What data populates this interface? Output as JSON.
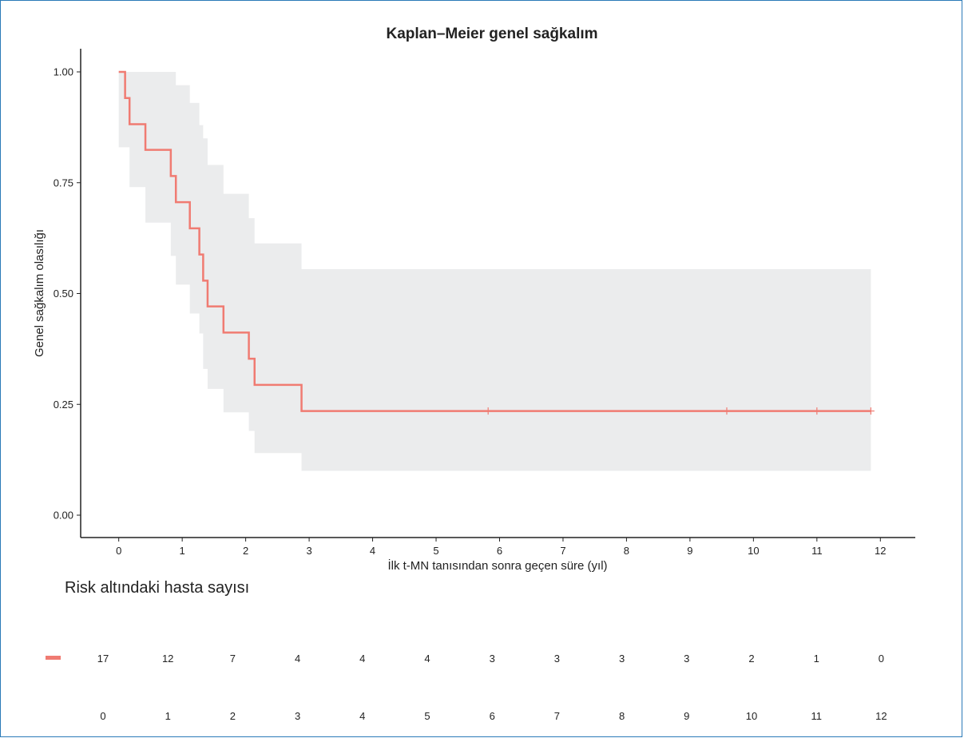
{
  "chart_data": {
    "type": "line",
    "title": "Kaplan–Meier genel sağkalım",
    "xlabel": "İlk t-MN tanısından sonra geçen süre (yıl)",
    "ylabel": "Genel sağkalım olasılığı",
    "xlim": [
      -0.6,
      12.55
    ],
    "ylim": [
      0,
      1
    ],
    "x_ticks": [
      0,
      1,
      2,
      3,
      4,
      5,
      6,
      7,
      8,
      9,
      10,
      11,
      12
    ],
    "y_ticks": [
      "0.00",
      "0.25",
      "0.50",
      "0.75",
      "1.00"
    ],
    "y_tick_values": [
      0,
      0.25,
      0.5,
      0.75,
      1
    ],
    "grid": false,
    "color": "#f07b72",
    "ci_color": "#ebeced",
    "series": [
      {
        "type": "step",
        "points": [
          [
            0,
            1.0
          ],
          [
            0.1,
            0.941
          ],
          [
            0.17,
            0.882
          ],
          [
            0.42,
            0.824
          ],
          [
            0.82,
            0.765
          ],
          [
            0.9,
            0.706
          ],
          [
            1.12,
            0.647
          ],
          [
            1.27,
            0.588
          ],
          [
            1.33,
            0.529
          ],
          [
            1.4,
            0.471
          ],
          [
            1.65,
            0.412
          ],
          [
            2.05,
            0.353
          ],
          [
            2.14,
            0.294
          ],
          [
            2.88,
            0.235
          ],
          [
            11.85,
            0.235
          ]
        ],
        "censored": [
          5.82,
          9.58,
          11.0,
          11.85
        ],
        "ci": [
          [
            0,
            1.0,
            0.83
          ],
          [
            0.1,
            1.0,
            0.83
          ],
          [
            0.17,
            1.0,
            0.74
          ],
          [
            0.42,
            1.0,
            0.66
          ],
          [
            0.82,
            1.0,
            0.585
          ],
          [
            0.9,
            0.97,
            0.52
          ],
          [
            1.12,
            0.93,
            0.455
          ],
          [
            1.27,
            0.88,
            0.41
          ],
          [
            1.33,
            0.85,
            0.33
          ],
          [
            1.4,
            0.79,
            0.285
          ],
          [
            1.65,
            0.725,
            0.232
          ],
          [
            2.05,
            0.67,
            0.19
          ],
          [
            2.14,
            0.613,
            0.14
          ],
          [
            2.88,
            0.555,
            0.1
          ],
          [
            11.85,
            0.555,
            0.1
          ]
        ]
      }
    ]
  },
  "risk_table": {
    "title": "Risk altındaki hasta sayısı",
    "counts": [
      "17",
      "12",
      "7",
      "4",
      "4",
      "4",
      "3",
      "3",
      "3",
      "3",
      "2",
      "1",
      "0"
    ],
    "times": [
      "0",
      "1",
      "2",
      "3",
      "4",
      "5",
      "6",
      "7",
      "8",
      "9",
      "10",
      "11",
      "12"
    ]
  }
}
